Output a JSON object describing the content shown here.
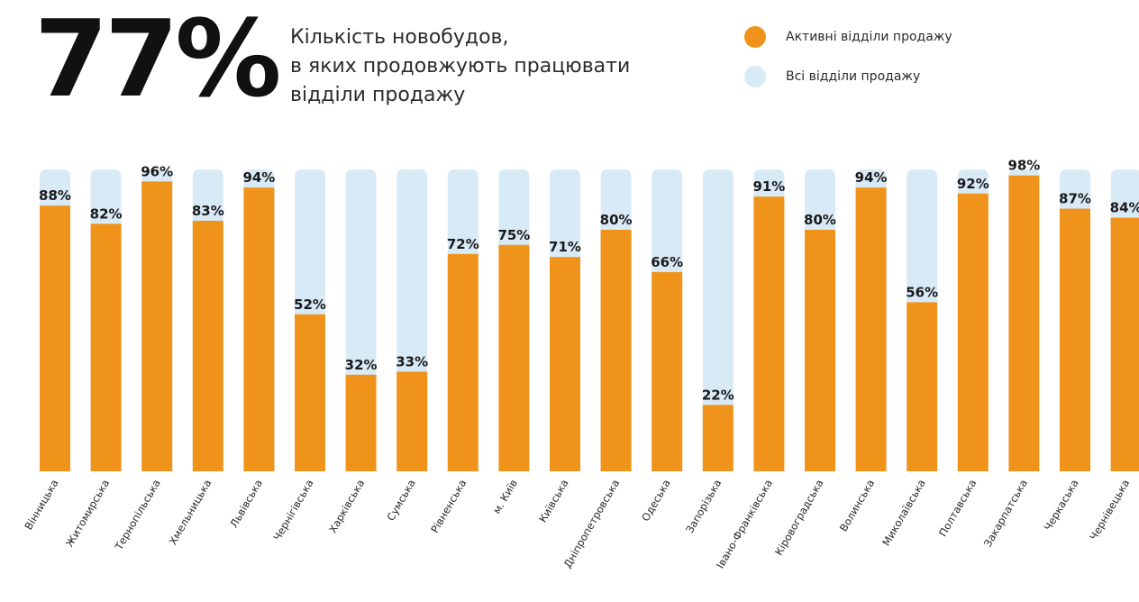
{
  "header": {
    "big_stat": "77%",
    "subtitle_lines": [
      "Кількість новобудов,",
      "в яких продовжують працювати",
      "відділи продажу"
    ]
  },
  "legend": [
    {
      "label": "Активні відділи продажу",
      "color": "#f0931b"
    },
    {
      "label": "Всі відділи продажу",
      "color": "#d9eaf7"
    }
  ],
  "chart_data": {
    "type": "bar",
    "title": "Кількість новобудов, в яких продовжують працювати відділи продажу",
    "categories": [
      "Вінницька",
      "Житомирська",
      "Тернопільська",
      "Хмельницька",
      "Львівська",
      "Чернігівська",
      "Харківська",
      "Сумська",
      "Рівненська",
      "м. Київ",
      "Київська",
      "Дніпропетровська",
      "Одеська",
      "Запорізька",
      "Івано-Франківська",
      "Кіровоградська",
      "Волинська",
      "Миколаївська",
      "Полтавська",
      "Закарпатська",
      "Черкаська",
      "Чернівецька"
    ],
    "series": [
      {
        "name": "Активні відділи продажу",
        "color": "#f0931b",
        "values": [
          88,
          82,
          96,
          83,
          94,
          52,
          32,
          33,
          72,
          75,
          71,
          80,
          66,
          22,
          91,
          80,
          94,
          56,
          92,
          98,
          87,
          84
        ]
      },
      {
        "name": "Всі відділи продажу",
        "color": "#d9eaf7",
        "values": [
          100,
          100,
          100,
          100,
          100,
          100,
          100,
          100,
          100,
          100,
          100,
          100,
          100,
          100,
          100,
          100,
          100,
          100,
          100,
          100,
          100,
          100
        ]
      }
    ],
    "value_labels": [
      "88%",
      "82%",
      "96%",
      "83%",
      "94%",
      "52%",
      "32%",
      "33%",
      "72%",
      "75%",
      "71%",
      "80%",
      "66%",
      "22%",
      "91%",
      "80%",
      "94%",
      "56%",
      "92%",
      "98%",
      "87%",
      "84%"
    ],
    "ylim": [
      0,
      100
    ],
    "xlabel": "",
    "ylabel": "",
    "grid": false,
    "legend_position": "top-right"
  }
}
